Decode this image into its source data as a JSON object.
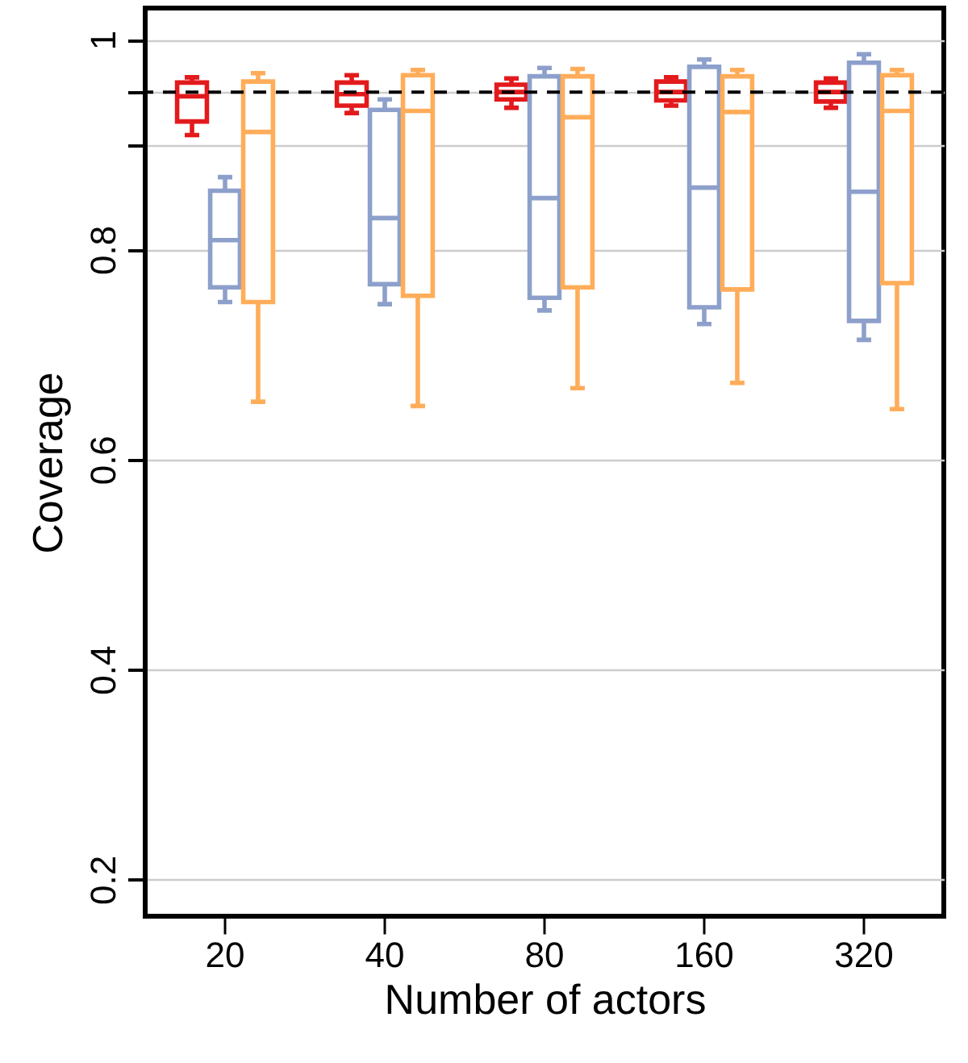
{
  "chart_data": {
    "type": "box",
    "xlabel": "Number of actors",
    "ylabel": "Coverage",
    "categories": [
      "20",
      "40",
      "80",
      "160",
      "320"
    ],
    "ylim": [
      0.165,
      1.03
    ],
    "yticks": [
      0.2,
      0.4,
      0.6,
      0.8,
      {
        "value": 0.9,
        "label": null
      },
      {
        "value": 0.95,
        "label": null
      },
      1.0
    ],
    "grid": "y",
    "ref_lines": [
      {
        "axis": "y",
        "value": 0.95,
        "label": null,
        "color": "#000000",
        "line_style": "dashed"
      }
    ],
    "series": [
      {
        "color": "#e31a1c",
        "boxes": [
          {
            "low": 0.909,
            "q1": 0.922,
            "median": 0.946,
            "q3": 0.959,
            "high": 0.964
          },
          {
            "low": 0.93,
            "q1": 0.937,
            "median": 0.948,
            "q3": 0.959,
            "high": 0.966
          },
          {
            "low": 0.935,
            "q1": 0.943,
            "median": 0.95,
            "q3": 0.957,
            "high": 0.963
          },
          {
            "low": 0.937,
            "q1": 0.942,
            "median": 0.95,
            "q3": 0.96,
            "high": 0.964
          },
          {
            "low": 0.935,
            "q1": 0.941,
            "median": 0.95,
            "q3": 0.959,
            "high": 0.963
          }
        ]
      },
      {
        "color": "#8da0cb",
        "boxes": [
          {
            "low": 0.75,
            "q1": 0.764,
            "median": 0.809,
            "q3": 0.856,
            "high": 0.869
          },
          {
            "low": 0.748,
            "q1": 0.767,
            "median": 0.83,
            "q3": 0.933,
            "high": 0.943
          },
          {
            "low": 0.742,
            "q1": 0.754,
            "median": 0.849,
            "q3": 0.965,
            "high": 0.973
          },
          {
            "low": 0.729,
            "q1": 0.745,
            "median": 0.859,
            "q3": 0.974,
            "high": 0.981
          },
          {
            "low": 0.714,
            "q1": 0.732,
            "median": 0.855,
            "q3": 0.978,
            "high": 0.986
          }
        ]
      },
      {
        "color": "#ffad5a",
        "boxes": [
          {
            "low": 0.655,
            "q1": 0.75,
            "median": 0.912,
            "q3": 0.96,
            "high": 0.968
          },
          {
            "low": 0.651,
            "q1": 0.756,
            "median": 0.932,
            "q3": 0.966,
            "high": 0.971
          },
          {
            "low": 0.668,
            "q1": 0.764,
            "median": 0.926,
            "q3": 0.965,
            "high": 0.972
          },
          {
            "low": 0.673,
            "q1": 0.762,
            "median": 0.931,
            "q3": 0.965,
            "high": 0.971
          },
          {
            "low": 0.648,
            "q1": 0.768,
            "median": 0.932,
            "q3": 0.966,
            "high": 0.971
          }
        ]
      }
    ]
  }
}
